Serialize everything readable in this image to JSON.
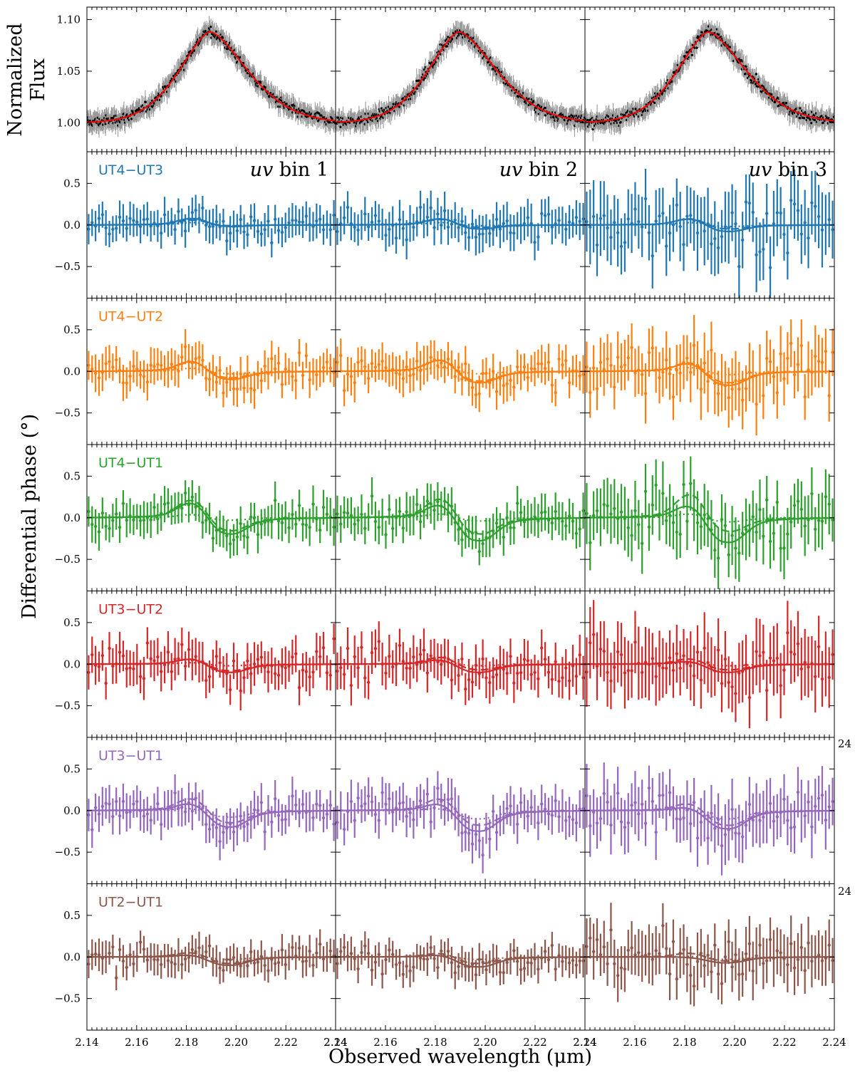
{
  "figure": {
    "flux_ylabel_line1": "Normalized",
    "flux_ylabel_line2": "Flux",
    "phase_ylabel": "Differential phase (°)",
    "xlabel": "Observed wavelength (μm)",
    "uv_bins": [
      {
        "label_italic": "uv",
        "label_rest": " bin 1"
      },
      {
        "label_italic": "uv",
        "label_rest": " bin 2"
      },
      {
        "label_italic": "uv",
        "label_rest": " bin 3"
      }
    ],
    "x_tick_labels": [
      "2.14",
      "2.16",
      "2.18",
      "2.20",
      "2.22",
      "2.24"
    ],
    "edge_tick_fragment": "24"
  },
  "chart_data": {
    "type": "line",
    "xlim": [
      2.14,
      2.24
    ],
    "x_ticks": [
      2.14,
      2.16,
      2.18,
      2.2,
      2.22,
      2.24
    ],
    "flux_panel": {
      "ylim": [
        0.972,
        1.112
      ],
      "y_ticks": [
        1.0,
        1.05,
        1.1
      ],
      "y_tick_labels": [
        "1.00",
        "1.05",
        "1.10"
      ],
      "model_color": "#ff0000",
      "data_color": "#000000",
      "error_color": "#999999",
      "profile": {
        "continuum": 1.0,
        "peak_wavelength": 2.1895,
        "peak_flux": 1.088,
        "left_width": 0.018,
        "right_width": 0.022
      }
    },
    "phase_panels": {
      "ylim": [
        -0.88,
        0.88
      ],
      "y_ticks": [
        -0.5,
        0.0,
        0.5
      ],
      "y_tick_labels": [
        "−0.5",
        "0.0",
        "0.5"
      ],
      "baselines": [
        {
          "name": "UT4−UT3",
          "color": "#1f77b4",
          "models": [
            {
              "bump": 0.08,
              "dip": -0.02,
              "dashed_bump": 0.06,
              "dashed_dip": -0.01,
              "dotted_bump": 0.03,
              "dotted_dip": -0.01,
              "scatter": 0.15,
              "err": 0.18
            },
            {
              "bump": 0.08,
              "dip": -0.05,
              "dashed_bump": 0.07,
              "dashed_dip": -0.03,
              "dotted_bump": 0.03,
              "dotted_dip": -0.01,
              "scatter": 0.17,
              "err": 0.2
            },
            {
              "bump": 0.08,
              "dip": -0.08,
              "dashed_bump": 0.08,
              "dashed_dip": -0.05,
              "dotted_bump": 0.03,
              "dotted_dip": -0.02,
              "scatter": 0.35,
              "err": 0.38
            }
          ]
        },
        {
          "name": "UT4−UT2",
          "color": "#ff7f0e",
          "models": [
            {
              "bump": 0.13,
              "dip": -0.1,
              "dashed_bump": 0.12,
              "dashed_dip": -0.08,
              "dotted_bump": 0.04,
              "dotted_dip": -0.03,
              "scatter": 0.17,
              "err": 0.19
            },
            {
              "bump": 0.15,
              "dip": -0.14,
              "dashed_bump": 0.15,
              "dashed_dip": -0.12,
              "dotted_bump": 0.05,
              "dotted_dip": -0.03,
              "scatter": 0.18,
              "err": 0.2
            },
            {
              "bump": 0.11,
              "dip": -0.17,
              "dashed_bump": 0.12,
              "dashed_dip": -0.14,
              "dotted_bump": 0.05,
              "dotted_dip": -0.04,
              "scatter": 0.3,
              "err": 0.32
            }
          ]
        },
        {
          "name": "UT4−UT1",
          "color": "#2ca02c",
          "models": [
            {
              "bump": 0.2,
              "dip": -0.2,
              "dashed_bump": 0.23,
              "dashed_dip": -0.16,
              "dotted_bump": 0.04,
              "dotted_dip": -0.03,
              "scatter": 0.17,
              "err": 0.19
            },
            {
              "bump": 0.18,
              "dip": -0.28,
              "dashed_bump": 0.25,
              "dashed_dip": -0.2,
              "dotted_bump": 0.05,
              "dotted_dip": -0.04,
              "scatter": 0.18,
              "err": 0.2
            },
            {
              "bump": 0.17,
              "dip": -0.3,
              "dashed_bump": 0.3,
              "dashed_dip": -0.17,
              "dotted_bump": 0.05,
              "dotted_dip": -0.05,
              "scatter": 0.3,
              "err": 0.32
            }
          ]
        },
        {
          "name": "UT3−UT2",
          "color": "#d62728",
          "models": [
            {
              "bump": 0.07,
              "dip": -0.1,
              "dashed_bump": 0.07,
              "dashed_dip": -0.08,
              "dotted_bump": 0.02,
              "dotted_dip": -0.02,
              "scatter": 0.2,
              "err": 0.22
            },
            {
              "bump": 0.06,
              "dip": -0.1,
              "dashed_bump": 0.09,
              "dashed_dip": -0.07,
              "dotted_bump": 0.03,
              "dotted_dip": -0.02,
              "scatter": 0.2,
              "err": 0.22
            },
            {
              "bump": 0.04,
              "dip": -0.1,
              "dashed_bump": 0.07,
              "dashed_dip": -0.07,
              "dotted_bump": 0.02,
              "dotted_dip": -0.02,
              "scatter": 0.35,
              "err": 0.37
            }
          ]
        },
        {
          "name": "UT3−UT1",
          "color": "#9467bd",
          "models": [
            {
              "bump": 0.1,
              "dip": -0.2,
              "dashed_bump": 0.16,
              "dashed_dip": -0.15,
              "dotted_bump": 0.03,
              "dotted_dip": -0.08,
              "scatter": 0.18,
              "err": 0.2
            },
            {
              "bump": 0.1,
              "dip": -0.25,
              "dashed_bump": 0.16,
              "dashed_dip": -0.18,
              "dotted_bump": 0.03,
              "dotted_dip": -0.1,
              "scatter": 0.2,
              "err": 0.22
            },
            {
              "bump": 0.05,
              "dip": -0.22,
              "dashed_bump": 0.1,
              "dashed_dip": -0.18,
              "dotted_bump": 0.02,
              "dotted_dip": -0.1,
              "scatter": 0.3,
              "err": 0.32
            }
          ]
        },
        {
          "name": "UT2−UT1",
          "color": "#8c564b",
          "models": [
            {
              "bump": 0.03,
              "dip": -0.1,
              "dashed_bump": 0.06,
              "dashed_dip": -0.08,
              "dotted_bump": 0.02,
              "dotted_dip": -0.03,
              "scatter": 0.15,
              "err": 0.17
            },
            {
              "bump": 0.03,
              "dip": -0.12,
              "dashed_bump": 0.05,
              "dashed_dip": -0.08,
              "dotted_bump": 0.02,
              "dotted_dip": -0.03,
              "scatter": 0.15,
              "err": 0.17
            },
            {
              "bump": 0.0,
              "dip": -0.07,
              "dashed_bump": 0.05,
              "dashed_dip": -0.05,
              "dotted_bump": 0.01,
              "dotted_dip": -0.03,
              "scatter": 0.28,
              "err": 0.3
            }
          ]
        }
      ]
    }
  }
}
